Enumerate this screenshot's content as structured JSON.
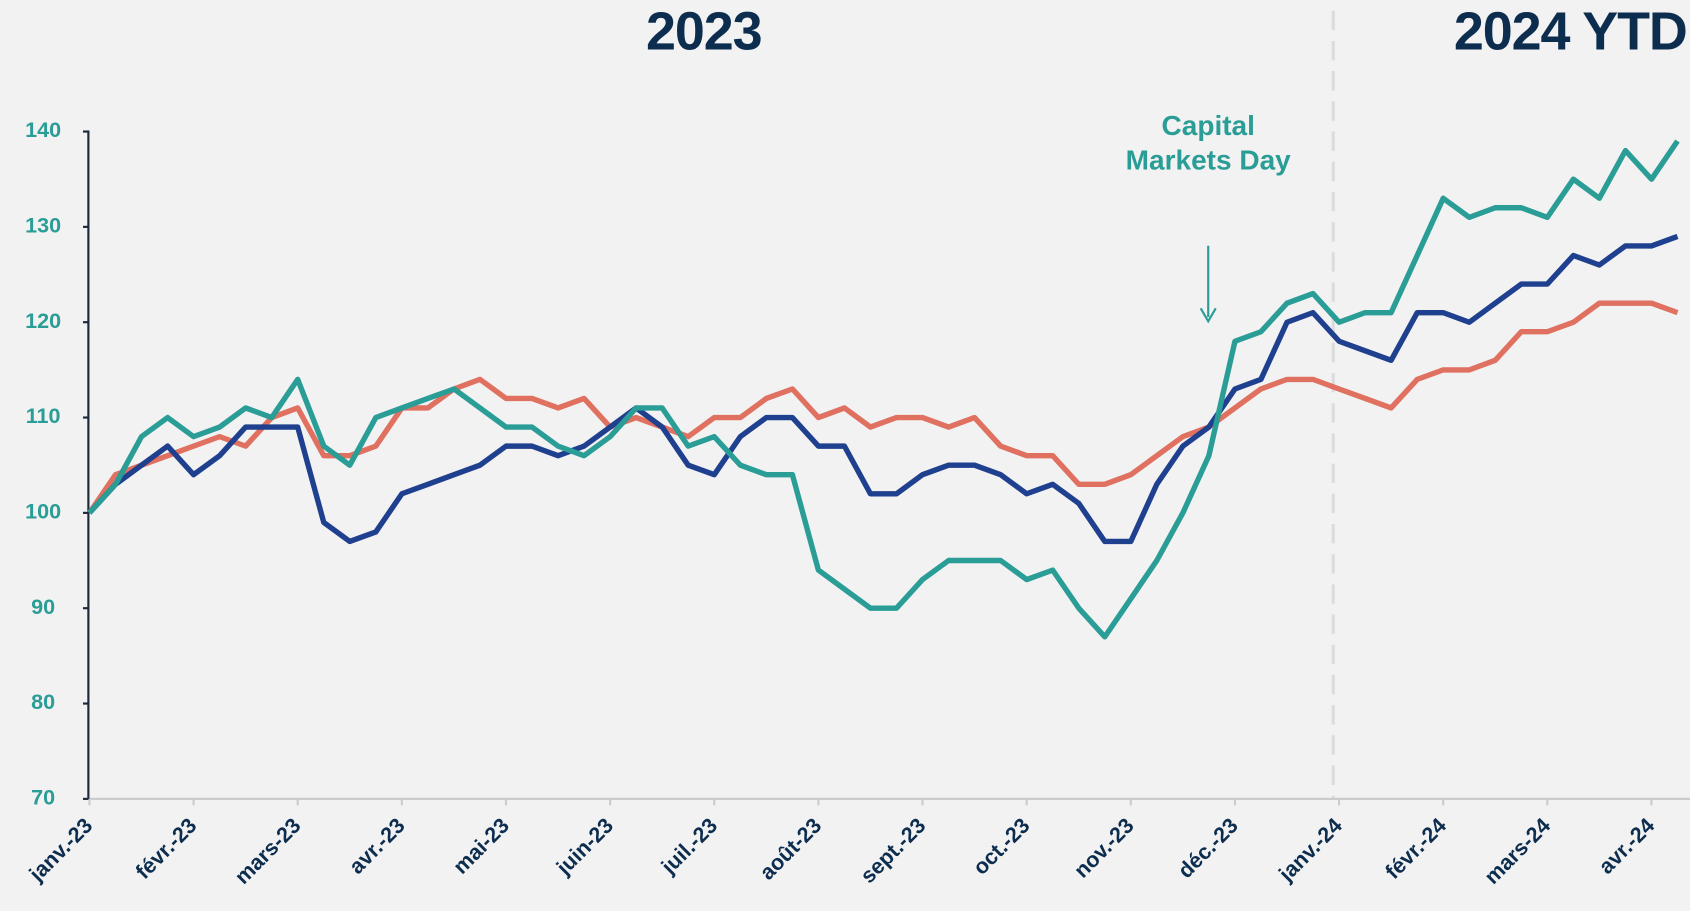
{
  "chart_data": {
    "type": "line",
    "title_left": "2023",
    "title_right": "2024 YTD",
    "annotation": "Capital Markets Day",
    "x": [
      0,
      0.25,
      0.5,
      0.75,
      1,
      1.25,
      1.5,
      1.75,
      2,
      2.25,
      2.5,
      2.75,
      3,
      3.25,
      3.5,
      3.75,
      4,
      4.25,
      4.5,
      4.75,
      5,
      5.25,
      5.5,
      5.75,
      6,
      6.25,
      6.5,
      6.75,
      7,
      7.25,
      7.5,
      7.75,
      8,
      8.25,
      8.5,
      8.75,
      9,
      9.25,
      9.5,
      9.75,
      10,
      10.25,
      10.5,
      10.75,
      11,
      11.25,
      11.5,
      11.75,
      12,
      12.25,
      12.5,
      12.75,
      13,
      13.25,
      13.5,
      13.75,
      14,
      14.25,
      14.5,
      14.75,
      15,
      15.25
    ],
    "series": [
      {
        "color": "#2a9d96",
        "values": [
          100,
          103,
          108,
          110,
          108,
          109,
          111,
          110,
          114,
          107,
          105,
          110,
          111,
          112,
          113,
          111,
          109,
          109,
          107,
          106,
          108,
          111,
          111,
          107,
          108,
          105,
          104,
          104,
          94,
          92,
          90,
          90,
          93,
          95,
          95,
          95,
          93,
          94,
          90,
          87,
          91,
          95,
          100,
          106,
          118,
          119,
          122,
          123,
          120,
          121,
          121,
          127,
          133,
          131,
          132,
          132,
          131,
          135,
          133,
          138,
          135,
          139
        ]
      },
      {
        "color": "#1f3f8f",
        "values": [
          100,
          103,
          105,
          107,
          104,
          106,
          109,
          109,
          109,
          99,
          97,
          98,
          102,
          103,
          104,
          105,
          107,
          107,
          106,
          107,
          109,
          111,
          109,
          105,
          104,
          108,
          110,
          110,
          107,
          107,
          102,
          102,
          104,
          105,
          105,
          104,
          102,
          103,
          101,
          97,
          97,
          103,
          107,
          109,
          113,
          114,
          120,
          121,
          118,
          117,
          116,
          121,
          121,
          120,
          122,
          124,
          124,
          127,
          126,
          128,
          128,
          129
        ]
      },
      {
        "color": "#e07060",
        "values": [
          100,
          104,
          105,
          106,
          107,
          108,
          107,
          110,
          111,
          106,
          106,
          107,
          111,
          111,
          113,
          114,
          112,
          112,
          111,
          112,
          109,
          110,
          109,
          108,
          110,
          110,
          112,
          113,
          110,
          111,
          109,
          110,
          110,
          109,
          110,
          107,
          106,
          106,
          103,
          103,
          104,
          106,
          108,
          109,
          111,
          113,
          114,
          114,
          113,
          112,
          111,
          114,
          115,
          115,
          116,
          119,
          119,
          120,
          122,
          122,
          122,
          121
        ]
      }
    ],
    "xlim": [
      0,
      15.37
    ],
    "ylim": [
      70,
      140
    ],
    "yticks": [
      70,
      80,
      90,
      100,
      110,
      120,
      130,
      140
    ],
    "xticks": [
      {
        "value": 0,
        "label": "janv.-23"
      },
      {
        "value": 1,
        "label": "févr.-23"
      },
      {
        "value": 2,
        "label": "mars-23"
      },
      {
        "value": 3,
        "label": "avr.-23"
      },
      {
        "value": 4,
        "label": "mai-23"
      },
      {
        "value": 5,
        "label": "juin-23"
      },
      {
        "value": 6,
        "label": "juil.-23"
      },
      {
        "value": 7,
        "label": "août-23"
      },
      {
        "value": 8,
        "label": "sept.-23"
      },
      {
        "value": 9,
        "label": "oct.-23"
      },
      {
        "value": 10,
        "label": "nov.-23"
      },
      {
        "value": 11,
        "label": "déc.-23"
      },
      {
        "value": 12,
        "label": "janv.-24"
      },
      {
        "value": 13,
        "label": "févr.-24"
      },
      {
        "value": 14,
        "label": "mars-24"
      },
      {
        "value": 15,
        "label": "avr.-24"
      }
    ]
  }
}
